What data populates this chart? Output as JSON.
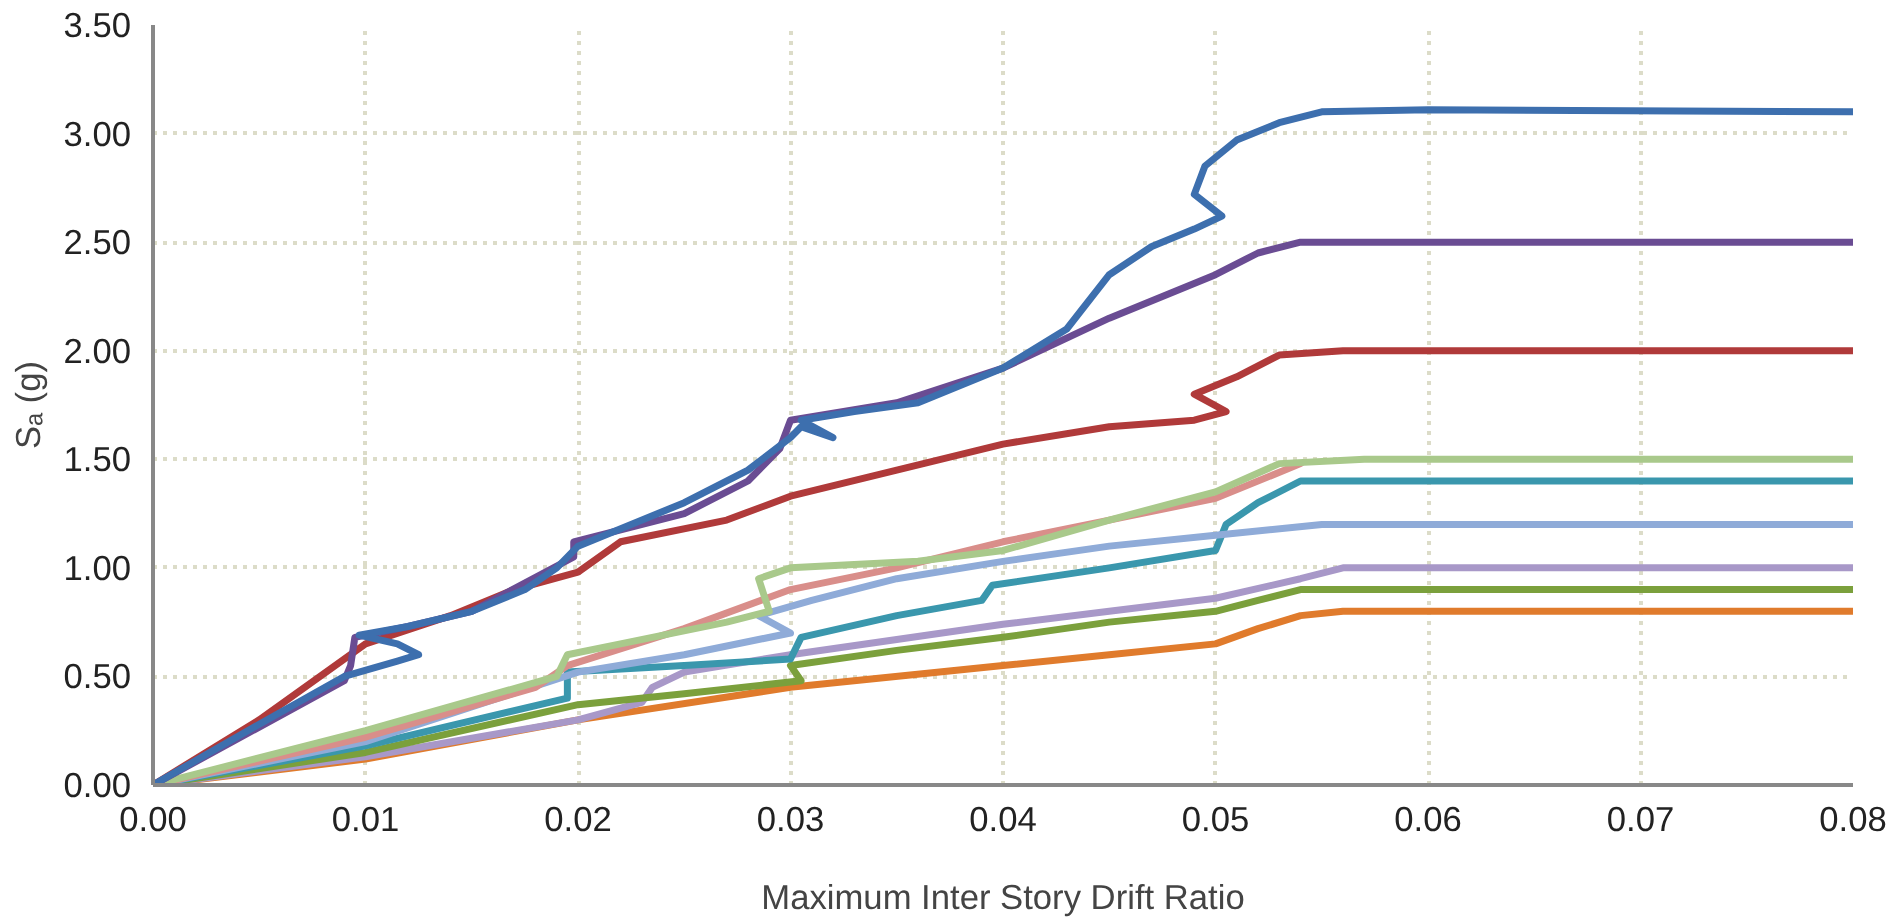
{
  "chart_data": {
    "type": "line",
    "xlabel": "Maximum Inter Story Drift Ratio",
    "ylabel": "Sₐ (g)",
    "xlim": [
      0,
      0.08
    ],
    "ylim": [
      0,
      3.5
    ],
    "xticks": [
      {
        "value": 0,
        "label": "0.00"
      },
      {
        "value": 0.01,
        "label": "0.01"
      },
      {
        "value": 0.02,
        "label": "0.02"
      },
      {
        "value": 0.03,
        "label": "0.03"
      },
      {
        "value": 0.04,
        "label": "0.04"
      },
      {
        "value": 0.05,
        "label": "0.05"
      },
      {
        "value": 0.06,
        "label": "0.06"
      },
      {
        "value": 0.07,
        "label": "0.07"
      },
      {
        "value": 0.08,
        "label": "0.08"
      }
    ],
    "yticks": [
      {
        "value": 0,
        "label": "0.00"
      },
      {
        "value": 0.5,
        "label": "0.50"
      },
      {
        "value": 1,
        "label": "1.00"
      },
      {
        "value": 1.5,
        "label": "1.50"
      },
      {
        "value": 2,
        "label": "2.00"
      },
      {
        "value": 2.5,
        "label": "2.50"
      },
      {
        "value": 3,
        "label": "3.00"
      },
      {
        "value": 3.5,
        "label": "3.50"
      }
    ],
    "grid": true,
    "marker": "none",
    "line_style": "solid",
    "series": [
      {
        "color": "#e07b2c",
        "x": [
          0,
          0.01,
          0.02,
          0.03,
          0.04,
          0.045,
          0.05,
          0.052,
          0.054,
          0.056,
          0.08
        ],
        "values": [
          0,
          0.12,
          0.3,
          0.45,
          0.55,
          0.6,
          0.65,
          0.72,
          0.78,
          0.8,
          0.8
        ]
      },
      {
        "color": "#a898c8",
        "x": [
          0,
          0.01,
          0.02,
          0.023,
          0.0235,
          0.025,
          0.03,
          0.035,
          0.04,
          0.045,
          0.05,
          0.054,
          0.056,
          0.08
        ],
        "values": [
          0,
          0.13,
          0.3,
          0.38,
          0.45,
          0.52,
          0.6,
          0.67,
          0.74,
          0.8,
          0.86,
          0.95,
          1.0,
          1.0
        ]
      },
      {
        "color": "#7ba03c",
        "x": [
          0,
          0.01,
          0.02,
          0.025,
          0.0305,
          0.03,
          0.035,
          0.04,
          0.045,
          0.05,
          0.052,
          0.054,
          0.08
        ],
        "values": [
          0,
          0.15,
          0.37,
          0.42,
          0.48,
          0.55,
          0.62,
          0.68,
          0.75,
          0.8,
          0.85,
          0.9,
          0.9
        ]
      },
      {
        "color": "#3a97ad",
        "x": [
          0,
          0.01,
          0.0195,
          0.0195,
          0.025,
          0.03,
          0.0305,
          0.035,
          0.039,
          0.0395,
          0.045,
          0.05,
          0.0505,
          0.052,
          0.054,
          0.08
        ],
        "values": [
          0,
          0.18,
          0.4,
          0.52,
          0.55,
          0.58,
          0.68,
          0.78,
          0.85,
          0.92,
          1.0,
          1.08,
          1.2,
          1.3,
          1.4,
          1.4
        ]
      },
      {
        "color": "#8fabd8",
        "x": [
          0,
          0.01,
          0.02,
          0.025,
          0.03,
          0.0285,
          0.031,
          0.035,
          0.04,
          0.045,
          0.05,
          0.055,
          0.08
        ],
        "values": [
          0,
          0.2,
          0.52,
          0.6,
          0.7,
          0.78,
          0.85,
          0.95,
          1.03,
          1.1,
          1.15,
          1.2,
          1.2
        ]
      },
      {
        "color": "#d98e8a",
        "x": [
          0,
          0.01,
          0.018,
          0.0195,
          0.025,
          0.03,
          0.035,
          0.04,
          0.045,
          0.05,
          0.054
        ],
        "values": [
          0,
          0.22,
          0.45,
          0.55,
          0.72,
          0.9,
          1.0,
          1.12,
          1.22,
          1.32,
          1.48
        ]
      },
      {
        "color": "#a9c98b",
        "x": [
          0,
          0.01,
          0.019,
          0.0195,
          0.022,
          0.027,
          0.029,
          0.0285,
          0.03,
          0.036,
          0.04,
          0.045,
          0.05,
          0.053,
          0.057,
          0.08
        ],
        "values": [
          0,
          0.25,
          0.5,
          0.6,
          0.65,
          0.75,
          0.8,
          0.95,
          1.0,
          1.03,
          1.08,
          1.22,
          1.35,
          1.48,
          1.5,
          1.5
        ]
      },
      {
        "color": "#b03a3a",
        "x": [
          0,
          0.005,
          0.01,
          0.014,
          0.017,
          0.02,
          0.022,
          0.027,
          0.03,
          0.035,
          0.04,
          0.045,
          0.049,
          0.0505,
          0.049,
          0.051,
          0.053,
          0.056,
          0.08
        ],
        "values": [
          0,
          0.3,
          0.65,
          0.78,
          0.9,
          0.98,
          1.12,
          1.22,
          1.33,
          1.45,
          1.57,
          1.65,
          1.68,
          1.72,
          1.8,
          1.88,
          1.98,
          2.0,
          2.0
        ]
      },
      {
        "color": "#6a4c93",
        "x": [
          0,
          0.009,
          0.0093,
          0.0095,
          0.012,
          0.015,
          0.0198,
          0.0198,
          0.025,
          0.028,
          0.0295,
          0.03,
          0.035,
          0.04,
          0.045,
          0.05,
          0.052,
          0.054,
          0.08
        ],
        "values": [
          0,
          0.48,
          0.55,
          0.68,
          0.73,
          0.8,
          1.05,
          1.12,
          1.25,
          1.4,
          1.55,
          1.68,
          1.76,
          1.92,
          2.15,
          2.35,
          2.45,
          2.5,
          2.5
        ]
      },
      {
        "color": "#3d6fae",
        "x": [
          0,
          0.005,
          0.009,
          0.0115,
          0.0125,
          0.0115,
          0.0097,
          0.012,
          0.015,
          0.0175,
          0.019,
          0.02,
          0.025,
          0.028,
          0.03,
          0.0305,
          0.032,
          0.0305,
          0.033,
          0.036,
          0.04,
          0.043,
          0.045,
          0.047,
          0.049,
          0.0503,
          0.049,
          0.0495,
          0.051,
          0.053,
          0.055,
          0.06,
          0.08
        ],
        "values": [
          0,
          0.28,
          0.5,
          0.57,
          0.6,
          0.65,
          0.69,
          0.73,
          0.8,
          0.9,
          1.0,
          1.1,
          1.3,
          1.45,
          1.6,
          1.65,
          1.6,
          1.68,
          1.72,
          1.76,
          1.92,
          2.1,
          2.35,
          2.48,
          2.56,
          2.62,
          2.72,
          2.85,
          2.97,
          3.05,
          3.1,
          3.11,
          3.1
        ]
      }
    ]
  }
}
